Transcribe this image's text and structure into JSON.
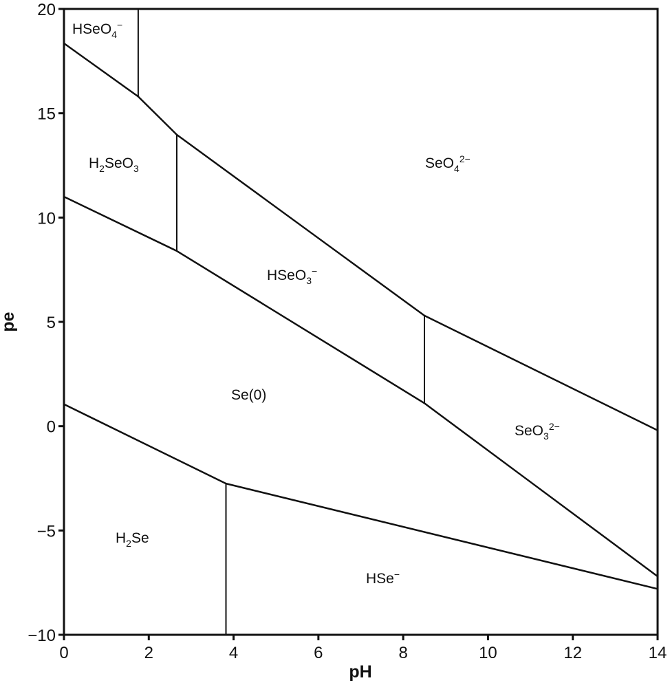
{
  "chart_data": {
    "type": "line",
    "title": "",
    "xlabel": "pH",
    "ylabel": "pe",
    "xlim": [
      0,
      14
    ],
    "ylim": [
      -10,
      20
    ],
    "xticks": [
      0,
      2,
      4,
      6,
      8,
      10,
      12,
      14
    ],
    "yticks": [
      -10,
      -5,
      0,
      5,
      10,
      15,
      20
    ],
    "xtick_labels": [
      "0",
      "2",
      "4",
      "6",
      "8",
      "10",
      "12",
      "14"
    ],
    "ytick_labels": [
      "−10",
      "−5",
      "0",
      "5",
      "10",
      "15",
      "20"
    ],
    "grid": false,
    "legend": null,
    "series": [
      {
        "name": "upper boundary (Se(VI)/Se(IV))",
        "x": [
          0,
          1.75,
          2.66,
          8.5,
          14
        ],
        "y": [
          18.35,
          15.8,
          13.97,
          5.3,
          -0.2
        ]
      },
      {
        "name": "middle boundary (Se(IV)/Se(0))",
        "x": [
          0,
          2.66,
          8.5,
          14
        ],
        "y": [
          11.0,
          8.4,
          1.1,
          -7.2
        ]
      },
      {
        "name": "lower boundary (Se(0)/Se(-II))",
        "x": [
          0,
          3.82,
          14
        ],
        "y": [
          1.05,
          -2.75,
          -7.8
        ]
      },
      {
        "name": "HSeO4-/SeO4 2- boundary",
        "x": [
          1.75,
          1.75
        ],
        "y": [
          20,
          15.8
        ]
      },
      {
        "name": "H2SeO3/HSeO3- boundary",
        "x": [
          2.66,
          2.66
        ],
        "y": [
          13.97,
          8.4
        ]
      },
      {
        "name": "HSeO3-/SeO3 2- boundary",
        "x": [
          8.5,
          8.5
        ],
        "y": [
          5.3,
          1.1
        ]
      },
      {
        "name": "H2Se/HSe- boundary",
        "x": [
          3.82,
          3.82
        ],
        "y": [
          -2.75,
          -10
        ]
      }
    ],
    "annotations": [
      {
        "id": "hseo4",
        "base": "HSeO",
        "sub": "4",
        "sup": "−",
        "x": 0.95,
        "y": 18.9
      },
      {
        "id": "h2seo3",
        "parts": [
          "H",
          "2",
          "SeO",
          "3"
        ],
        "x": 1.25,
        "y": 12.4
      },
      {
        "id": "seo4",
        "base": "SeO",
        "sub": "4",
        "sup": "2−",
        "x": 9.4,
        "y": 12.4
      },
      {
        "id": "hseo3",
        "base": "HSeO",
        "sub": "3",
        "sup": "−",
        "x": 5.5,
        "y": 7.0
      },
      {
        "id": "se0",
        "text": "Se(0)",
        "x": 4.5,
        "y": 1.4
      },
      {
        "id": "seo3",
        "base": "SeO",
        "sub": "3",
        "sup": "2−",
        "x": 12.1,
        "y": -0.4
      },
      {
        "id": "h2se",
        "parts": [
          "H",
          "2",
          "Se"
        ],
        "x": 1.65,
        "y": -5.5
      },
      {
        "id": "hse",
        "base": "HSe",
        "sup": "−",
        "x": 7.3,
        "y": -7.1
      }
    ]
  },
  "labels": {
    "xlabel": "pH",
    "ylabel": "pe",
    "regions": {
      "hseo4": {
        "base": "HSeO",
        "sub": "4",
        "sup": "−"
      },
      "h2seo3": {
        "p1": "H",
        "p2": "2",
        "p3": "SeO",
        "p4": "3"
      },
      "seo4": {
        "base": "SeO",
        "sub": "4",
        "sup": "2−"
      },
      "hseo3": {
        "base": "HSeO",
        "sub": "3",
        "sup": "−"
      },
      "se0": {
        "text": "Se(0)"
      },
      "seo3": {
        "base": "SeO",
        "sub": "3",
        "sup": "2−"
      },
      "h2se": {
        "p1": "H",
        "p2": "2",
        "p3": "Se"
      },
      "hse": {
        "base": "HSe",
        "sup": "−"
      }
    }
  },
  "colors": {
    "line": "#111111",
    "background": "#ffffff"
  }
}
